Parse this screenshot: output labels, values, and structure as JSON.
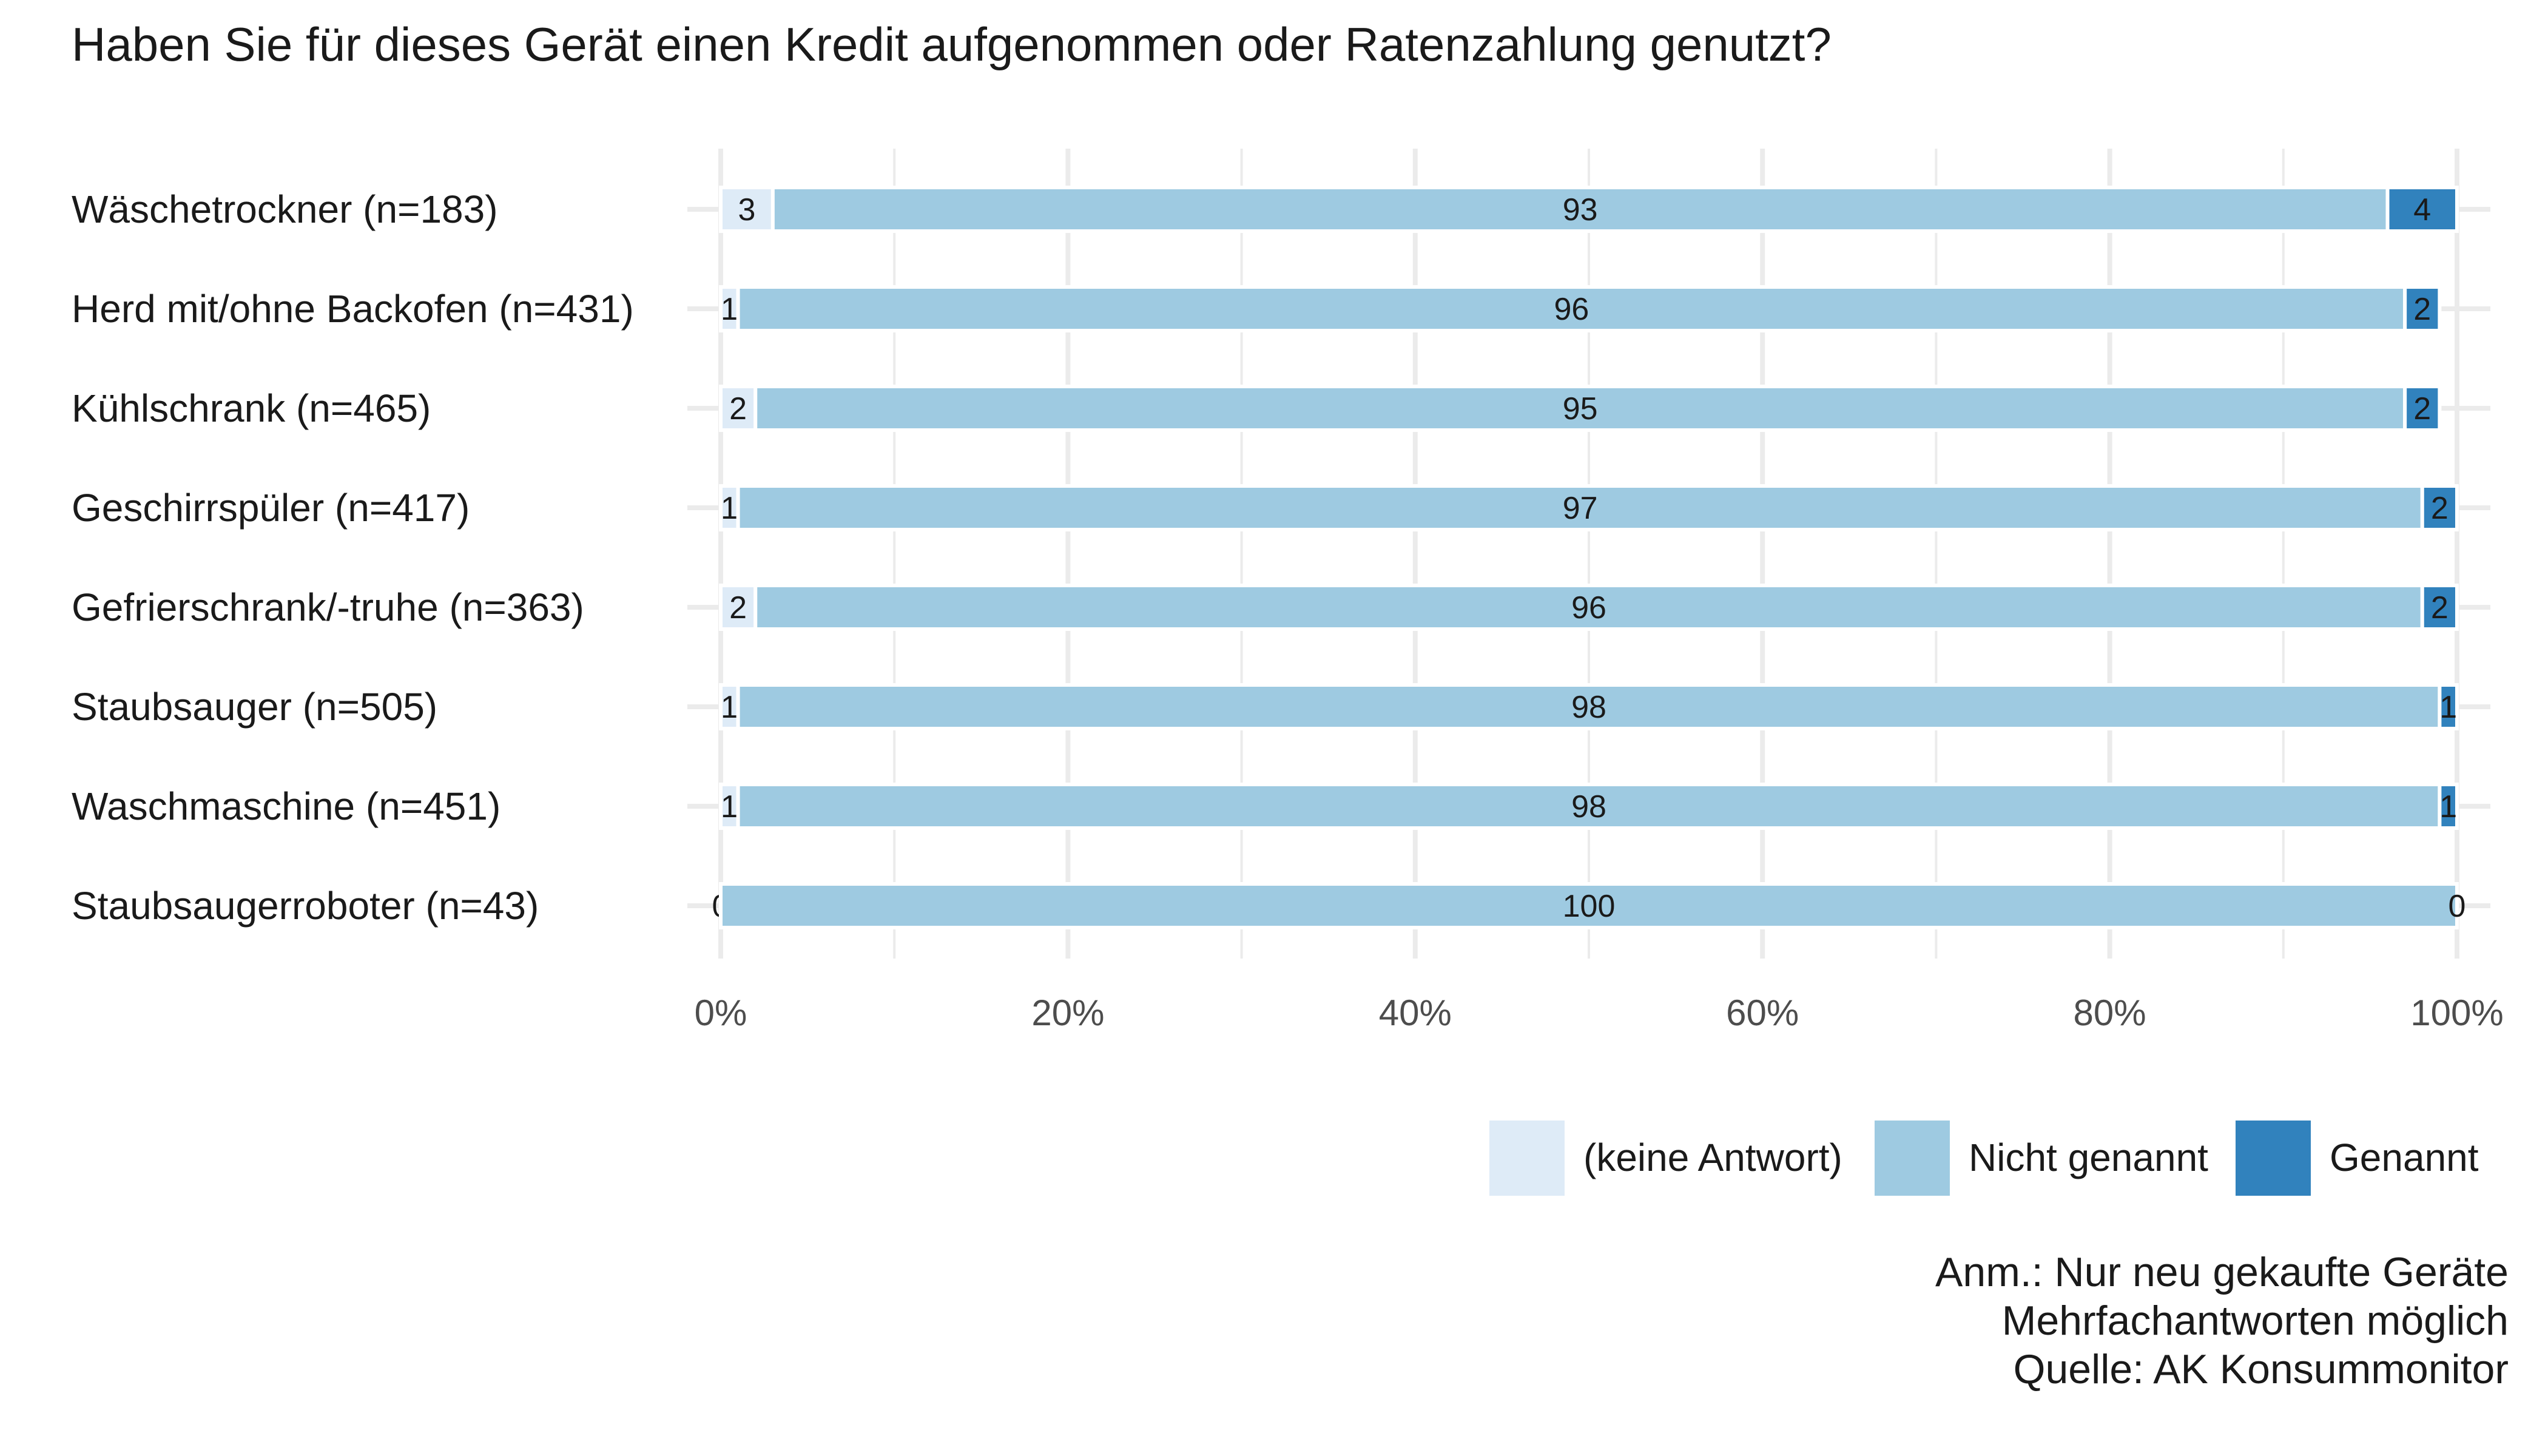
{
  "chart_data": {
    "type": "bar",
    "orientation": "horizontal",
    "stacked": true,
    "title": "Haben Sie für dieses Gerät einen Kredit aufgenommen oder Ratenzahlung genutzt?",
    "categories": [
      "Wäschetrockner (n=183)",
      "Herd mit/ohne Backofen (n=431)",
      "Kühlschrank (n=465)",
      "Geschirrspüler (n=417)",
      "Gefrierschrank/-truhe (n=363)",
      "Staubsauger (n=505)",
      "Waschmaschine (n=451)",
      "Staubsaugerroboter (n=43)"
    ],
    "series": [
      {
        "name": "(keine Antwort)",
        "color": "#deebf7",
        "values": [
          3,
          1,
          2,
          1,
          2,
          1,
          1,
          0
        ]
      },
      {
        "name": "Nicht genannt",
        "color": "#9ecae1",
        "values": [
          93,
          96,
          95,
          97,
          96,
          98,
          98,
          100
        ]
      },
      {
        "name": "Genannt",
        "color": "#3182bd",
        "values": [
          4,
          2,
          2,
          2,
          2,
          1,
          1,
          0
        ]
      }
    ],
    "xlim": [
      0,
      100
    ],
    "x_ticks": [
      0,
      20,
      40,
      60,
      80,
      100
    ],
    "x_tick_labels": [
      "0%",
      "20%",
      "40%",
      "60%",
      "80%",
      "100%"
    ],
    "grid": true,
    "legend_position": "bottom-right",
    "notes": [
      "Anm.: Nur neu gekaufte Geräte",
      "Mehrfachantworten möglich",
      "Quelle: AK Konsummonitor"
    ]
  }
}
